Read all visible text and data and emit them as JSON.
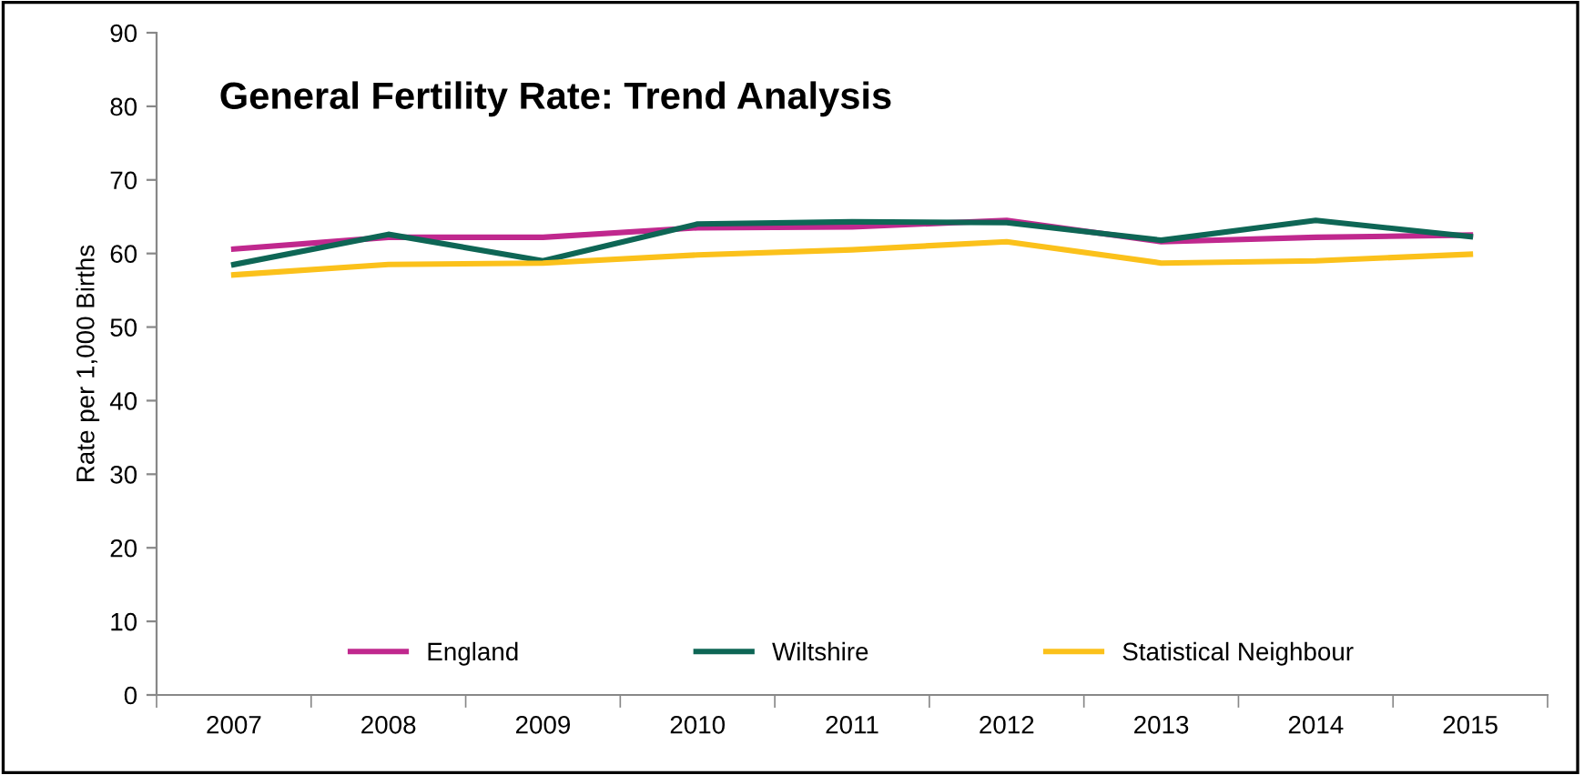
{
  "chart_data": {
    "type": "line",
    "title": "General Fertility Rate: Trend Analysis",
    "ylabel": "Rate per 1,000 Births",
    "categories": [
      "2007",
      "2008",
      "2009",
      "2010",
      "2011",
      "2012",
      "2013",
      "2014",
      "2015"
    ],
    "series": [
      {
        "name": "England",
        "color": "#c0288e",
        "values": [
          60.6,
          62.2,
          62.2,
          63.5,
          63.6,
          64.5,
          61.6,
          62.2,
          62.5
        ]
      },
      {
        "name": "Wiltshire",
        "color": "#0e6655",
        "values": [
          58.5,
          62.6,
          59.0,
          64.0,
          64.3,
          64.2,
          61.8,
          64.5,
          62.3
        ]
      },
      {
        "name": "Statistical Neighbour",
        "color": "#fbc11b",
        "values": [
          57.1,
          58.5,
          58.7,
          59.8,
          60.5,
          61.6,
          58.7,
          59.0,
          59.9
        ]
      }
    ],
    "ylim": [
      0,
      90
    ],
    "yticks": [
      0,
      10,
      20,
      30,
      40,
      50,
      60,
      70,
      80,
      90
    ],
    "grid": false,
    "legend": "bottom",
    "marker": "none",
    "line_style": "solid"
  }
}
